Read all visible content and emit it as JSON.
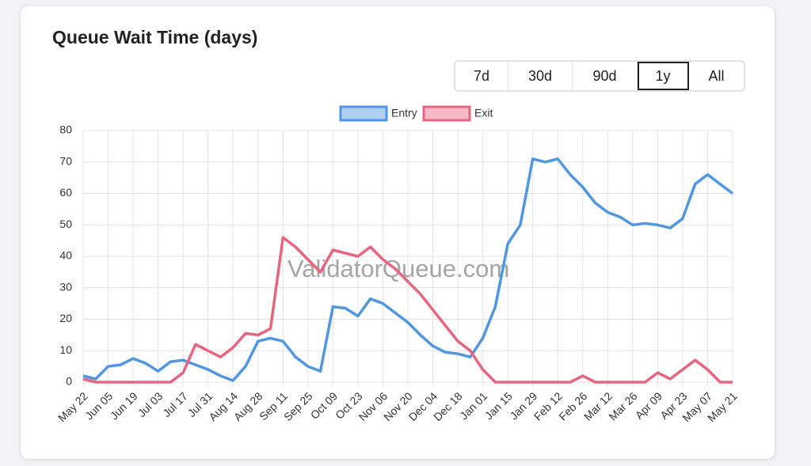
{
  "buttons": [
    "7d",
    "30d",
    "90d",
    "1y",
    "All"
  ],
  "active_button": "1y",
  "watermark": "ValidatorQueue.com",
  "chart_data": {
    "type": "line",
    "title": "Queue Wait Time (days)",
    "categories": [
      "May 22",
      null,
      "Jun 05",
      null,
      "Jun 19",
      null,
      "Jul 03",
      null,
      "Jul 17",
      null,
      "Jul 31",
      null,
      "Aug 14",
      null,
      "Aug 28",
      null,
      "Sep 11",
      null,
      "Sep 25",
      null,
      "Oct 09",
      null,
      "Oct 23",
      null,
      "Nov 06",
      null,
      "Nov 20",
      null,
      "Dec 04",
      null,
      "Dec 18",
      null,
      "Jan 01",
      null,
      "Jan 15",
      null,
      "Jan 29",
      null,
      "Feb 12",
      null,
      "Feb 26",
      null,
      "Mar 12",
      null,
      "Mar 26",
      null,
      "Apr 09",
      null,
      "Apr 23",
      null,
      "May 07",
      null,
      "May 21"
    ],
    "series": [
      {
        "name": "Entry",
        "color": "#4f97e0",
        "values": [
          2,
          1,
          5,
          5.5,
          7.5,
          6,
          3.5,
          6.5,
          7,
          5.5,
          4,
          2,
          0.5,
          5,
          13,
          14,
          13,
          8,
          5,
          3.5,
          24,
          23.5,
          21,
          26.5,
          25,
          22,
          19,
          15,
          11.5,
          9.5,
          9,
          8,
          14,
          24,
          44,
          50,
          71,
          70,
          71,
          66,
          62,
          57,
          54,
          52.5,
          50,
          50.5,
          50,
          49,
          52,
          63,
          66,
          63,
          60
        ]
      },
      {
        "name": "Exit",
        "color": "#e8657f",
        "values": [
          1,
          0,
          0,
          0,
          0,
          0,
          0,
          0,
          3,
          12,
          10,
          8,
          11,
          15.5,
          15,
          17,
          46,
          43,
          39,
          35,
          42,
          41,
          40,
          43,
          39,
          36,
          32,
          28,
          23,
          18,
          13,
          10,
          4,
          0,
          0,
          0,
          0,
          0,
          0,
          0,
          2,
          0,
          0,
          0,
          0,
          0,
          3,
          1,
          4,
          7,
          4,
          0,
          0
        ]
      }
    ],
    "ylim": [
      0,
      80
    ],
    "yticks": [
      0,
      10,
      20,
      30,
      40,
      50,
      60,
      70,
      80
    ],
    "grid": true,
    "legend": "top"
  }
}
